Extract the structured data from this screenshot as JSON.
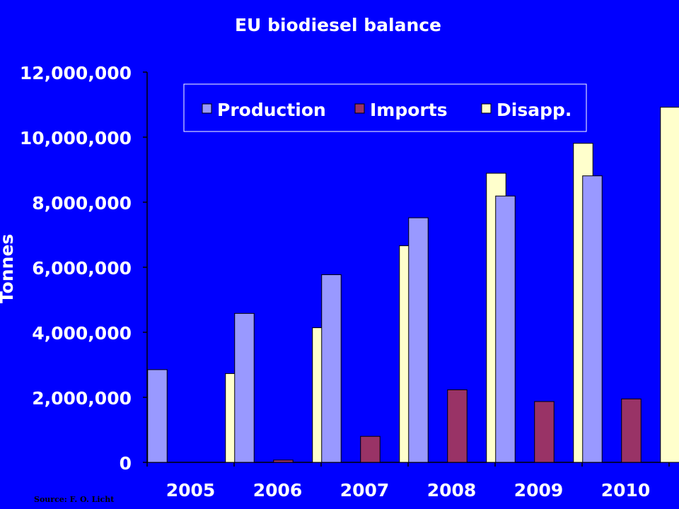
{
  "chart_data": {
    "type": "bar",
    "title": "EU biodiesel balance",
    "ylabel": "Tonnes",
    "xlabel": "",
    "categories": [
      "2005",
      "2006",
      "2007",
      "2008",
      "2009",
      "2010"
    ],
    "series": [
      {
        "name": "Production",
        "color": "#9999FF",
        "values": [
          2850000,
          4580000,
          5770000,
          7520000,
          8190000,
          8810000
        ]
      },
      {
        "name": "Imports",
        "color": "#993366",
        "values": [
          0,
          70000,
          800000,
          2230000,
          1870000,
          1950000
        ]
      },
      {
        "name": "Disapp.",
        "color": "#FFFFCC",
        "values": [
          2730000,
          4140000,
          6660000,
          8890000,
          9810000,
          10920000
        ]
      }
    ],
    "ylim": [
      0,
      12000000
    ],
    "yticks": [
      "0",
      "2,000,000",
      "4,000,000",
      "6,000,000",
      "8,000,000",
      "10,000,000",
      "12,000,000"
    ],
    "ytick_values": [
      0,
      2000000,
      4000000,
      6000000,
      8000000,
      10000000,
      12000000
    ],
    "grid": false,
    "legend": "top",
    "background_color": "#0000FF",
    "source": "Source: F. O. Licht"
  }
}
